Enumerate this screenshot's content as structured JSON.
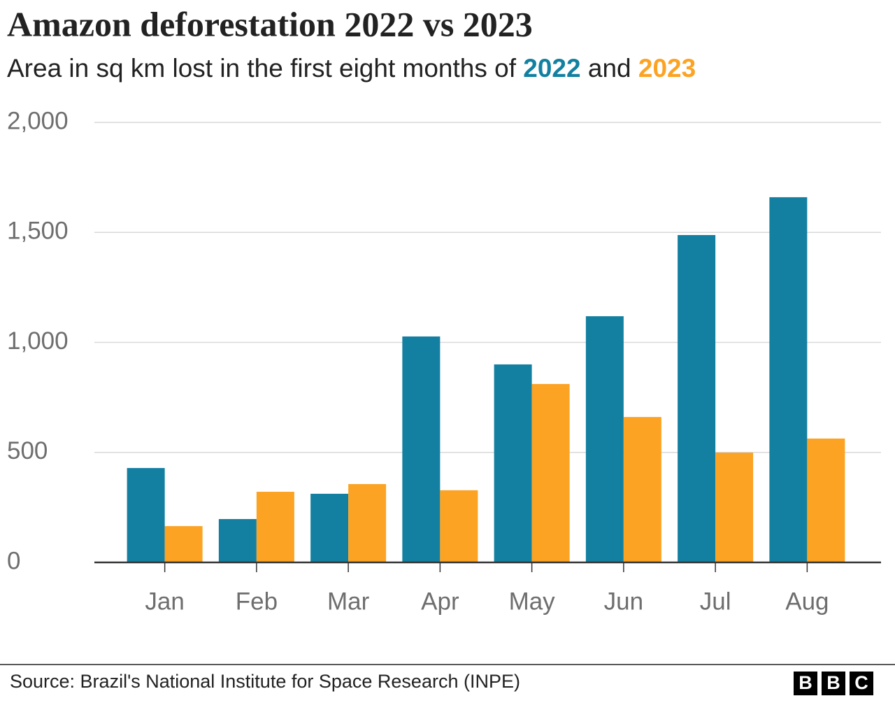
{
  "chart_data": {
    "type": "bar",
    "title": "Amazon deforestation 2022 vs 2023",
    "subtitle": "Area in sq km lost in the first eight months of",
    "subtitle_joiner": "and",
    "categories": [
      "Jan",
      "Feb",
      "Mar",
      "Apr",
      "May",
      "Jun",
      "Jul",
      "Aug"
    ],
    "series": [
      {
        "name": "2022",
        "color": "#1380a1",
        "values": [
          429,
          197,
          312,
          1027,
          900,
          1119,
          1488,
          1660
        ]
      },
      {
        "name": "2023",
        "color": "#fca323",
        "values": [
          165,
          321,
          356,
          328,
          811,
          661,
          499,
          563
        ]
      }
    ],
    "ylim": [
      0,
      2000
    ],
    "yticks": [
      0,
      500,
      {
        "value": 1000,
        "label": "1,000"
      },
      {
        "value": 1500,
        "label": "1,500"
      },
      {
        "value": 2000,
        "label": "2,000"
      }
    ],
    "grid": true,
    "source": "Source: Brazil's National Institute for Space Research (INPE)",
    "logo": [
      "B",
      "B",
      "C"
    ]
  }
}
